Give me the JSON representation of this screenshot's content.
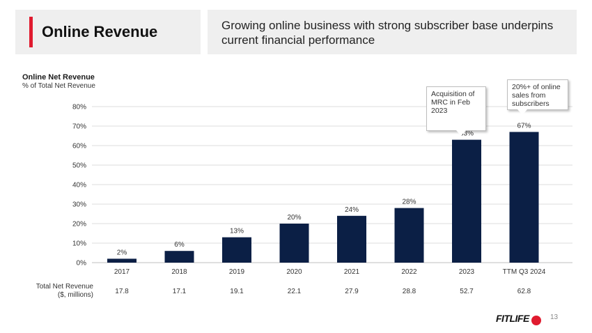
{
  "header": {
    "title": "Online Revenue",
    "subtitle": "Growing online business with strong subscriber base underpins current financial performance"
  },
  "colors": {
    "accent": "#e01b2f",
    "bar": "#0b1f45"
  },
  "callouts": {
    "acquisition": "Acquisition of\nMRC in Feb\n2023",
    "subscribers": "20%+ of online\nsales from\nsubscribers"
  },
  "total_net_revenue": {
    "label": "Total Net Revenue\n($, millions)",
    "values": [
      "17.8",
      "17.1",
      "19.1",
      "22.1",
      "27.9",
      "28.8",
      "52.7",
      "62.8"
    ]
  },
  "footer": {
    "logo_text": "FITLIFE",
    "page_number": "13"
  },
  "chart_data": {
    "type": "bar",
    "title": "Online Net Revenue",
    "subtitle": "% of Total Net Revenue",
    "categories": [
      "2017",
      "2018",
      "2019",
      "2020",
      "2021",
      "2022",
      "2023",
      "TTM Q3 2024"
    ],
    "values": [
      2,
      6,
      13,
      20,
      24,
      28,
      63,
      67
    ],
    "data_labels": [
      "2%",
      "6%",
      "13%",
      "20%",
      "24%",
      "28%",
      "63%",
      "67%"
    ],
    "yticks": [
      "0%",
      "10%",
      "20%",
      "30%",
      "40%",
      "50%",
      "60%",
      "70%",
      "80%"
    ],
    "ylim": [
      0,
      80
    ],
    "grid": true
  }
}
